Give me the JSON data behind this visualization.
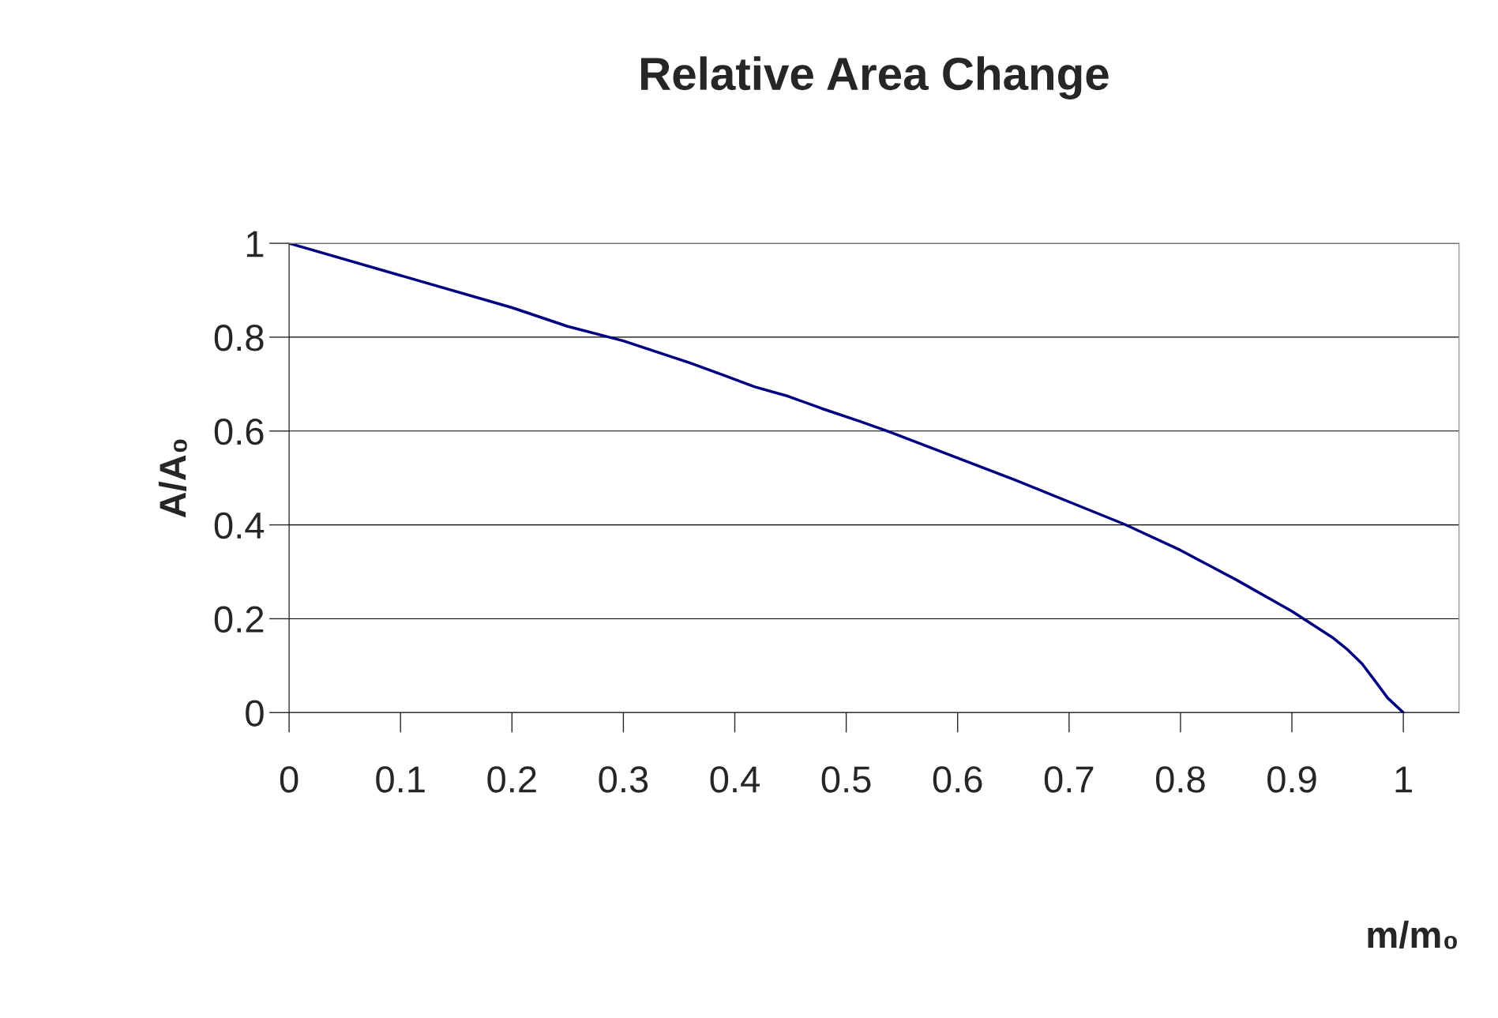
{
  "chart_data": {
    "type": "line",
    "title": "Relative Area Change",
    "xlabel": "m/m₀",
    "ylabel": "A/A₀",
    "x": [
      0,
      0.2,
      0.25,
      0.3,
      0.36,
      0.39,
      0.418,
      0.448,
      0.478,
      0.512,
      0.538,
      0.65,
      0.75,
      0.8,
      0.85,
      0.9,
      0.937,
      0.95,
      0.963,
      0.976,
      0.986,
      1
    ],
    "series": [
      {
        "color": "#000080",
        "values": [
          1,
          0.863,
          0.823,
          0.792,
          0.745,
          0.719,
          0.694,
          0.674,
          0.648,
          0.621,
          0.599,
          0.497,
          0.401,
          0.346,
          0.283,
          0.216,
          0.159,
          0.134,
          0.104,
          0.063,
          0.031,
          0
        ]
      }
    ],
    "xlim": [
      0,
      1.05
    ],
    "xticks": [
      0,
      0.1,
      0.2,
      0.3,
      0.4,
      0.5,
      0.6,
      0.7,
      0.8,
      0.9,
      1
    ],
    "ylim": [
      0,
      1
    ],
    "yticks": [
      0,
      0.2,
      0.4,
      0.6,
      0.8,
      1
    ],
    "grid": "y",
    "legend": false,
    "marker": "none",
    "line_style": "solid"
  }
}
